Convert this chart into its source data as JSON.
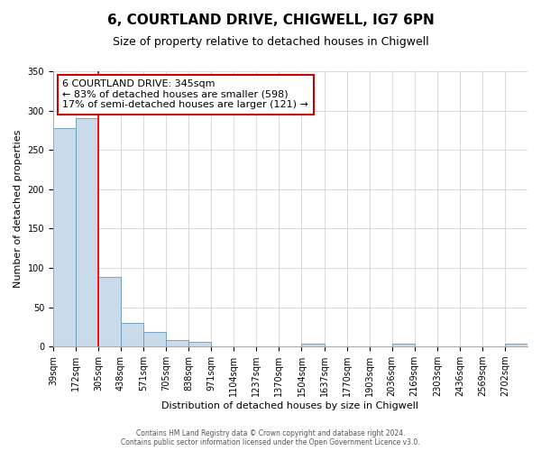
{
  "title": "6, COURTLAND DRIVE, CHIGWELL, IG7 6PN",
  "subtitle": "Size of property relative to detached houses in Chigwell",
  "xlabel": "Distribution of detached houses by size in Chigwell",
  "ylabel": "Number of detached properties",
  "bin_labels": [
    "39sqm",
    "172sqm",
    "305sqm",
    "438sqm",
    "571sqm",
    "705sqm",
    "838sqm",
    "971sqm",
    "1104sqm",
    "1237sqm",
    "1370sqm",
    "1504sqm",
    "1637sqm",
    "1770sqm",
    "1903sqm",
    "2036sqm",
    "2169sqm",
    "2303sqm",
    "2436sqm",
    "2569sqm",
    "2702sqm"
  ],
  "bar_heights": [
    278,
    290,
    88,
    30,
    19,
    8,
    6,
    0,
    0,
    0,
    0,
    3,
    0,
    0,
    0,
    3,
    0,
    0,
    0,
    0,
    3
  ],
  "bar_color": "#c9daea",
  "bar_edge_color": "#6699bb",
  "red_line_x": 2,
  "annotation_line1": "6 COURTLAND DRIVE: 345sqm",
  "annotation_line2": "← 83% of detached houses are smaller (598)",
  "annotation_line3": "17% of semi-detached houses are larger (121) →",
  "annotation_box_facecolor": "#ffffff",
  "annotation_box_edgecolor": "#cc0000",
  "ylim": [
    0,
    350
  ],
  "yticks": [
    0,
    50,
    100,
    150,
    200,
    250,
    300,
    350
  ],
  "footer_line1": "Contains HM Land Registry data © Crown copyright and database right 2024.",
  "footer_line2": "Contains public sector information licensed under the Open Government Licence v3.0.",
  "bg_color": "#ffffff",
  "plot_bg_color": "#ffffff",
  "grid_color": "#cccccc",
  "title_fontsize": 11,
  "subtitle_fontsize": 9,
  "ylabel_fontsize": 8,
  "xlabel_fontsize": 8,
  "tick_fontsize": 7,
  "annotation_fontsize": 8,
  "footer_fontsize": 5.5
}
